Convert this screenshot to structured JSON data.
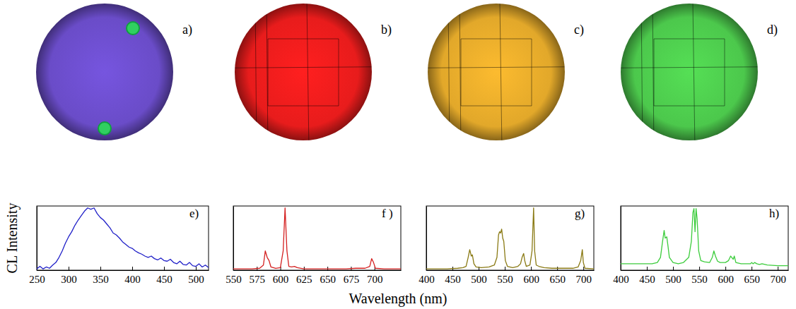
{
  "xlabel": "Wavelength (nm)",
  "ylabel": "CL Intensity",
  "images": [
    {
      "label": "a)",
      "color": "#6a4cc8"
    },
    {
      "label": "b)",
      "color": "#e81c1c"
    },
    {
      "label": "c)",
      "color": "#e2a82a"
    },
    {
      "label": "d)",
      "color": "#4cc84c"
    }
  ],
  "chart_data": [
    {
      "type": "line",
      "title": "e)",
      "tick_labels": "x",
      "xlim": [
        250,
        520
      ],
      "xticks": [
        250,
        300,
        350,
        400,
        450,
        500
      ],
      "ylim": [
        0,
        1
      ],
      "x": [
        250,
        255,
        260,
        265,
        270,
        275,
        280,
        285,
        290,
        295,
        300,
        305,
        310,
        315,
        320,
        325,
        330,
        335,
        340,
        345,
        350,
        355,
        360,
        365,
        370,
        375,
        380,
        385,
        390,
        395,
        400,
        405,
        410,
        415,
        420,
        425,
        430,
        435,
        440,
        445,
        450,
        455,
        460,
        465,
        470,
        475,
        480,
        485,
        490,
        495,
        500,
        505,
        510,
        515,
        520
      ],
      "series": [
        {
          "color": "#2020c8",
          "values": [
            0.02,
            0.06,
            0.02,
            0.05,
            0.03,
            0.08,
            0.12,
            0.2,
            0.3,
            0.42,
            0.52,
            0.6,
            0.7,
            0.78,
            0.85,
            0.92,
            0.97,
            0.95,
            0.97,
            0.88,
            0.82,
            0.78,
            0.72,
            0.66,
            0.58,
            0.55,
            0.5,
            0.44,
            0.4,
            0.36,
            0.34,
            0.3,
            0.27,
            0.25,
            0.22,
            0.2,
            0.22,
            0.18,
            0.16,
            0.19,
            0.15,
            0.14,
            0.17,
            0.12,
            0.1,
            0.14,
            0.09,
            0.08,
            0.12,
            0.07,
            0.06,
            0.1,
            0.05,
            0.08,
            0.04
          ]
        }
      ]
    },
    {
      "type": "line",
      "title": "f )",
      "tick_labels": "x",
      "xlim": [
        550,
        728
      ],
      "xticks": [
        550,
        575,
        600,
        625,
        650,
        675,
        700
      ],
      "ylim": [
        0,
        1
      ],
      "x": [
        550,
        560,
        570,
        578,
        582,
        584,
        586,
        588,
        590,
        595,
        600,
        603,
        605,
        607,
        609,
        612,
        615,
        618,
        625,
        640,
        650,
        670,
        680,
        690,
        695,
        697,
        699,
        701,
        710,
        720,
        728
      ],
      "series": [
        {
          "color": "#d42020",
          "values": [
            0.02,
            0.02,
            0.02,
            0.03,
            0.08,
            0.3,
            0.2,
            0.15,
            0.05,
            0.03,
            0.04,
            0.3,
            0.97,
            0.3,
            0.06,
            0.05,
            0.06,
            0.04,
            0.02,
            0.02,
            0.02,
            0.02,
            0.03,
            0.03,
            0.06,
            0.18,
            0.12,
            0.03,
            0.02,
            0.02,
            0.02
          ]
        }
      ]
    },
    {
      "type": "line",
      "title": "g)",
      "tick_labels": "x",
      "xlim": [
        400,
        720
      ],
      "xticks": [
        400,
        450,
        500,
        550,
        600,
        650,
        700
      ],
      "ylim": [
        0,
        1
      ],
      "x": [
        400,
        420,
        440,
        460,
        470,
        476,
        480,
        483,
        486,
        488,
        491,
        495,
        505,
        520,
        530,
        535,
        538,
        540,
        542,
        544,
        546,
        548,
        551,
        555,
        565,
        575,
        580,
        583,
        586,
        588,
        591,
        598,
        602,
        605,
        607,
        610,
        615,
        625,
        640,
        660,
        680,
        690,
        695,
        698,
        700,
        703,
        720
      ],
      "series": [
        {
          "color": "#8a7a14",
          "values": [
            0.02,
            0.02,
            0.02,
            0.03,
            0.04,
            0.06,
            0.2,
            0.32,
            0.22,
            0.24,
            0.1,
            0.05,
            0.04,
            0.05,
            0.08,
            0.2,
            0.55,
            0.6,
            0.58,
            0.64,
            0.5,
            0.45,
            0.15,
            0.06,
            0.04,
            0.06,
            0.1,
            0.2,
            0.26,
            0.15,
            0.06,
            0.08,
            0.3,
            0.97,
            0.3,
            0.08,
            0.06,
            0.04,
            0.03,
            0.03,
            0.03,
            0.05,
            0.15,
            0.32,
            0.12,
            0.03,
            0.02
          ]
        }
      ]
    },
    {
      "type": "line",
      "title": "h)",
      "tick_labels": "x",
      "xlim": [
        400,
        720
      ],
      "xticks": [
        400,
        450,
        500,
        550,
        600,
        650,
        700
      ],
      "ylim": [
        0,
        1
      ],
      "x": [
        400,
        420,
        440,
        460,
        470,
        476,
        480,
        483,
        485,
        488,
        490,
        493,
        500,
        510,
        520,
        530,
        535,
        538,
        540,
        542,
        544,
        546,
        549,
        553,
        560,
        570,
        575,
        578,
        581,
        585,
        590,
        600,
        606,
        610,
        612,
        615,
        617,
        620,
        630,
        640,
        648,
        650,
        653,
        656,
        660,
        665,
        670,
        680,
        700,
        720
      ],
      "series": [
        {
          "color": "#3ccc3c",
          "values": [
            0.1,
            0.1,
            0.1,
            0.1,
            0.12,
            0.2,
            0.45,
            0.62,
            0.5,
            0.52,
            0.4,
            0.2,
            0.12,
            0.1,
            0.12,
            0.2,
            0.45,
            0.9,
            0.96,
            0.6,
            0.96,
            0.8,
            0.3,
            0.15,
            0.13,
            0.12,
            0.2,
            0.3,
            0.22,
            0.14,
            0.12,
            0.12,
            0.15,
            0.22,
            0.2,
            0.17,
            0.22,
            0.12,
            0.1,
            0.1,
            0.1,
            0.12,
            0.1,
            0.12,
            0.1,
            0.09,
            0.1,
            0.08,
            0.07,
            0.07
          ]
        }
      ]
    }
  ]
}
